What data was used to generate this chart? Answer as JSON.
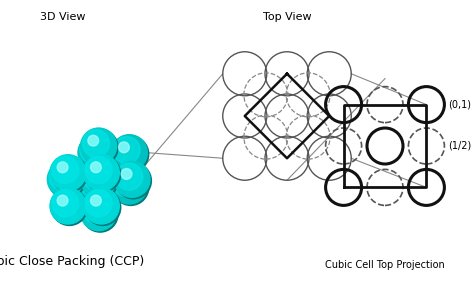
{
  "bg_color": "#ffffff",
  "atom_color_main": "#00d8d8",
  "atom_color_dark": "#009999",
  "atom_highlight": "#80ffff",
  "title_3d": "3D View",
  "title_top": "Top View",
  "title_bottom": "Cubic Close Packing (CCP)",
  "title_proj": "Cubic Cell Top Projection",
  "label_01": "(0,1)",
  "label_12": "(1/2)",
  "figw": 4.74,
  "figh": 2.84,
  "dpi": 100
}
